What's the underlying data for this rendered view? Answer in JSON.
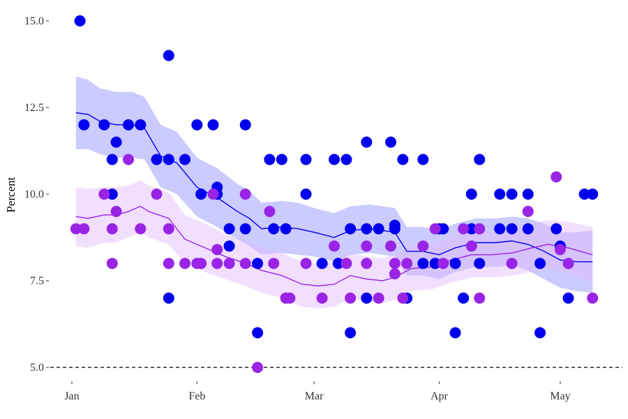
{
  "chart_data": {
    "type": "scatter",
    "ylabel": "Percent",
    "xlabel": "",
    "y_ticks": [
      5.0,
      7.5,
      10.0,
      12.5,
      15.0
    ],
    "y_tick_labels": [
      "5.0",
      "7.5",
      "10.0",
      "12.5",
      "15.0"
    ],
    "x_ticks": [
      {
        "label": "Jan",
        "date": "2024-01-01"
      },
      {
        "label": "Feb",
        "date": "2024-02-01"
      },
      {
        "label": "Mar",
        "date": "2024-03-01"
      },
      {
        "label": "Apr",
        "date": "2024-04-01"
      },
      {
        "label": "May",
        "date": "2024-05-01"
      }
    ],
    "xlim": [
      "2024-01-01",
      "2024-05-10"
    ],
    "ylim": [
      4.7,
      15.4
    ],
    "reference_line": {
      "y": 5.0,
      "style": "dashed",
      "color": "#000000"
    },
    "grid": false,
    "series": [
      {
        "color": "#0000ee",
        "band_color": "#8c8cff",
        "points": [
          [
            "2024-01-03",
            15
          ],
          [
            "2024-01-04",
            12
          ],
          [
            "2024-01-09",
            12
          ],
          [
            "2024-01-11",
            10
          ],
          [
            "2024-01-11",
            11
          ],
          [
            "2024-01-12",
            11.5
          ],
          [
            "2024-01-15",
            12
          ],
          [
            "2024-01-18",
            12
          ],
          [
            "2024-01-22",
            11
          ],
          [
            "2024-01-25",
            11
          ],
          [
            "2024-01-25",
            14
          ],
          [
            "2024-01-25",
            7
          ],
          [
            "2024-01-29",
            11
          ],
          [
            "2024-02-01",
            12
          ],
          [
            "2024-02-02",
            10
          ],
          [
            "2024-02-05",
            12
          ],
          [
            "2024-02-06",
            10
          ],
          [
            "2024-02-06",
            10.2
          ],
          [
            "2024-02-09",
            9
          ],
          [
            "2024-02-09",
            8.5
          ],
          [
            "2024-02-13",
            12
          ],
          [
            "2024-02-13",
            9
          ],
          [
            "2024-02-16",
            8
          ],
          [
            "2024-02-16",
            6
          ],
          [
            "2024-02-19",
            11
          ],
          [
            "2024-02-20",
            9
          ],
          [
            "2024-02-22",
            11
          ],
          [
            "2024-02-23",
            9
          ],
          [
            "2024-02-28",
            10
          ],
          [
            "2024-02-28",
            11
          ],
          [
            "2024-03-03",
            8
          ],
          [
            "2024-03-06",
            11
          ],
          [
            "2024-03-07",
            8
          ],
          [
            "2024-03-09",
            11
          ],
          [
            "2024-03-10",
            6
          ],
          [
            "2024-03-10",
            9
          ],
          [
            "2024-03-14",
            11.5
          ],
          [
            "2024-03-14",
            9
          ],
          [
            "2024-03-14",
            7
          ],
          [
            "2024-03-17",
            9
          ],
          [
            "2024-03-20",
            11.5
          ],
          [
            "2024-03-21",
            9
          ],
          [
            "2024-03-21",
            9.1
          ],
          [
            "2024-03-23",
            11
          ],
          [
            "2024-03-24",
            7
          ],
          [
            "2024-03-28",
            11
          ],
          [
            "2024-03-28",
            8
          ],
          [
            "2024-03-31",
            8
          ],
          [
            "2024-04-01",
            9
          ],
          [
            "2024-04-02",
            9
          ],
          [
            "2024-04-05",
            6
          ],
          [
            "2024-04-05",
            8
          ],
          [
            "2024-04-07",
            7
          ],
          [
            "2024-04-09",
            10
          ],
          [
            "2024-04-09",
            9
          ],
          [
            "2024-04-11",
            11
          ],
          [
            "2024-04-11",
            8
          ],
          [
            "2024-04-16",
            9
          ],
          [
            "2024-04-16",
            10
          ],
          [
            "2024-04-19",
            10
          ],
          [
            "2024-04-19",
            9
          ],
          [
            "2024-04-23",
            10
          ],
          [
            "2024-04-23",
            9
          ],
          [
            "2024-04-26",
            6
          ],
          [
            "2024-04-26",
            8
          ],
          [
            "2024-04-30",
            9
          ],
          [
            "2024-05-01",
            8.5
          ],
          [
            "2024-05-03",
            7
          ],
          [
            "2024-05-07",
            10
          ],
          [
            "2024-05-09",
            10
          ]
        ],
        "trend": [
          [
            "2024-01-02",
            12.35
          ],
          [
            "2024-01-05",
            12.3
          ],
          [
            "2024-01-08",
            12.1
          ],
          [
            "2024-01-12",
            12.0
          ],
          [
            "2024-01-16",
            12.0
          ],
          [
            "2024-01-19",
            11.9
          ],
          [
            "2024-01-23",
            11.1
          ],
          [
            "2024-01-27",
            10.9
          ],
          [
            "2024-02-01",
            10.2
          ],
          [
            "2024-02-06",
            9.9
          ],
          [
            "2024-02-11",
            9.5
          ],
          [
            "2024-02-14",
            9.3
          ],
          [
            "2024-02-17",
            9.0
          ],
          [
            "2024-02-22",
            9.05
          ],
          [
            "2024-02-26",
            9.0
          ],
          [
            "2024-03-01",
            8.9
          ],
          [
            "2024-03-06",
            8.75
          ],
          [
            "2024-03-10",
            8.95
          ],
          [
            "2024-03-15",
            9.0
          ],
          [
            "2024-03-18",
            8.95
          ],
          [
            "2024-03-21",
            8.9
          ],
          [
            "2024-03-24",
            8.35
          ],
          [
            "2024-03-28",
            8.35
          ],
          [
            "2024-04-01",
            8.25
          ],
          [
            "2024-04-05",
            8.45
          ],
          [
            "2024-04-10",
            8.6
          ],
          [
            "2024-04-15",
            8.6
          ],
          [
            "2024-04-19",
            8.65
          ],
          [
            "2024-04-23",
            8.55
          ],
          [
            "2024-04-27",
            8.35
          ],
          [
            "2024-05-01",
            8.1
          ],
          [
            "2024-05-05",
            8.05
          ],
          [
            "2024-05-09",
            8.05
          ]
        ],
        "band_halfwidth": [
          1.05,
          1.0,
          0.95,
          0.95,
          0.95,
          0.9,
          0.9,
          0.9,
          0.85,
          0.85,
          0.8,
          0.8,
          0.75,
          0.75,
          0.75,
          0.7,
          0.7,
          0.7,
          0.7,
          0.7,
          0.7,
          0.7,
          0.7,
          0.7,
          0.7,
          0.7,
          0.7,
          0.7,
          0.75,
          0.8,
          0.8,
          0.85,
          0.9
        ]
      },
      {
        "color": "#9a24e6",
        "band_color": "#e2b8ff",
        "points": [
          [
            "2024-01-02",
            9
          ],
          [
            "2024-01-04",
            9
          ],
          [
            "2024-01-09",
            10
          ],
          [
            "2024-01-11",
            8
          ],
          [
            "2024-01-11",
            9
          ],
          [
            "2024-01-12",
            9.5
          ],
          [
            "2024-01-15",
            11
          ],
          [
            "2024-01-18",
            9
          ],
          [
            "2024-01-22",
            10
          ],
          [
            "2024-01-25",
            9
          ],
          [
            "2024-01-25",
            8
          ],
          [
            "2024-01-29",
            8
          ],
          [
            "2024-02-01",
            8
          ],
          [
            "2024-02-02",
            8
          ],
          [
            "2024-02-05",
            10
          ],
          [
            "2024-02-06",
            8.4
          ],
          [
            "2024-02-06",
            8
          ],
          [
            "2024-02-09",
            8
          ],
          [
            "2024-02-13",
            10
          ],
          [
            "2024-02-13",
            8
          ],
          [
            "2024-02-16",
            5
          ],
          [
            "2024-02-19",
            9.5
          ],
          [
            "2024-02-20",
            8
          ],
          [
            "2024-02-23",
            7
          ],
          [
            "2024-02-24",
            7
          ],
          [
            "2024-02-28",
            8
          ],
          [
            "2024-03-03",
            7
          ],
          [
            "2024-03-06",
            8.5
          ],
          [
            "2024-03-09",
            8
          ],
          [
            "2024-03-10",
            7
          ],
          [
            "2024-03-14",
            8.5
          ],
          [
            "2024-03-14",
            8
          ],
          [
            "2024-03-17",
            7
          ],
          [
            "2024-03-20",
            8.5
          ],
          [
            "2024-03-21",
            7.7
          ],
          [
            "2024-03-21",
            8
          ],
          [
            "2024-03-23",
            7
          ],
          [
            "2024-03-24",
            8
          ],
          [
            "2024-03-28",
            8.5
          ],
          [
            "2024-03-31",
            9
          ],
          [
            "2024-04-02",
            8
          ],
          [
            "2024-04-07",
            9
          ],
          [
            "2024-04-09",
            8.5
          ],
          [
            "2024-04-11",
            9
          ],
          [
            "2024-04-11",
            7
          ],
          [
            "2024-04-19",
            8
          ],
          [
            "2024-04-23",
            9.5
          ],
          [
            "2024-04-30",
            10.5
          ],
          [
            "2024-05-01",
            8.4
          ],
          [
            "2024-05-03",
            8
          ],
          [
            "2024-05-09",
            7
          ]
        ],
        "trend": [
          [
            "2024-01-02",
            9.35
          ],
          [
            "2024-01-05",
            9.3
          ],
          [
            "2024-01-09",
            9.4
          ],
          [
            "2024-01-12",
            9.4
          ],
          [
            "2024-01-15",
            9.5
          ],
          [
            "2024-01-18",
            9.65
          ],
          [
            "2024-01-20",
            9.5
          ],
          [
            "2024-01-25",
            9.3
          ],
          [
            "2024-01-29",
            8.7
          ],
          [
            "2024-02-03",
            8.45
          ],
          [
            "2024-02-08",
            8.2
          ],
          [
            "2024-02-13",
            8.0
          ],
          [
            "2024-02-17",
            7.8
          ],
          [
            "2024-02-22",
            7.65
          ],
          [
            "2024-02-27",
            7.4
          ],
          [
            "2024-03-02",
            7.35
          ],
          [
            "2024-03-06",
            7.4
          ],
          [
            "2024-03-10",
            7.65
          ],
          [
            "2024-03-14",
            7.55
          ],
          [
            "2024-03-18",
            7.5
          ],
          [
            "2024-03-21",
            7.6
          ],
          [
            "2024-03-25",
            7.85
          ],
          [
            "2024-03-30",
            7.9
          ],
          [
            "2024-04-04",
            8.1
          ],
          [
            "2024-04-09",
            8.25
          ],
          [
            "2024-04-14",
            8.25
          ],
          [
            "2024-04-19",
            8.3
          ],
          [
            "2024-04-24",
            8.45
          ],
          [
            "2024-04-28",
            8.55
          ],
          [
            "2024-05-03",
            8.45
          ],
          [
            "2024-05-09",
            8.25
          ]
        ],
        "band_halfwidth": [
          0.85,
          0.85,
          0.8,
          0.8,
          0.75,
          0.75,
          0.75,
          0.75,
          0.7,
          0.7,
          0.65,
          0.65,
          0.65,
          0.65,
          0.65,
          0.65,
          0.65,
          0.65,
          0.65,
          0.65,
          0.65,
          0.65,
          0.65,
          0.65,
          0.65,
          0.65,
          0.65,
          0.7,
          0.7,
          0.75,
          0.8
        ]
      }
    ]
  }
}
